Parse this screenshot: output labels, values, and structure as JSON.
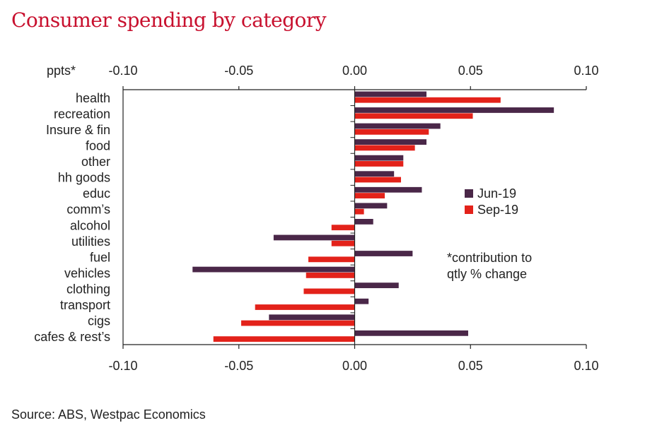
{
  "title": "Consumer spending by category",
  "source": "Source: ABS, Westpac Economics",
  "chart_data": {
    "type": "bar",
    "orientation": "horizontal",
    "unit_label": "ppts*",
    "note": [
      "*contribution to",
      "qtly % change"
    ],
    "xlim": [
      -0.1,
      0.1
    ],
    "ticks": [
      -0.1,
      -0.05,
      0.0,
      0.05,
      0.1
    ],
    "tick_labels": [
      "-0.10",
      "-0.05",
      "0.00",
      "0.05",
      "0.10"
    ],
    "grid": false,
    "legend_position": "right-middle",
    "categories": [
      "health",
      "recreation",
      "Insure & fin",
      "food",
      "other",
      "hh goods",
      "educ",
      "comm’s",
      "alcohol",
      "utilities",
      "fuel",
      "vehicles",
      "clothing",
      "transport",
      "cigs",
      "cafes & rest’s"
    ],
    "series": [
      {
        "name": "Jun-19",
        "color": "#4a2748",
        "values": [
          0.031,
          0.086,
          0.037,
          0.031,
          0.021,
          0.017,
          0.029,
          0.014,
          0.008,
          -0.035,
          0.025,
          -0.07,
          0.019,
          0.006,
          -0.037,
          0.049
        ]
      },
      {
        "name": "Sep-19",
        "color": "#e3221a",
        "values": [
          0.063,
          0.051,
          0.032,
          0.026,
          0.021,
          0.02,
          0.013,
          0.004,
          -0.01,
          -0.01,
          -0.02,
          -0.021,
          -0.022,
          -0.043,
          -0.049,
          -0.061
        ]
      }
    ]
  }
}
